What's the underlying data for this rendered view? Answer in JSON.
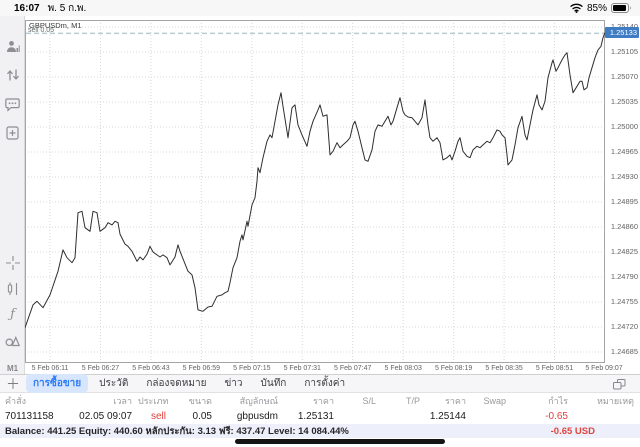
{
  "status_bar": {
    "time": "16:07",
    "date": "พ. 5 ก.พ.",
    "battery": "85%"
  },
  "sidebar": {
    "timeframe": "M1"
  },
  "chart": {
    "symbol_label": "GBPUSDm, M1",
    "position_line": {
      "label": "sell 0.05",
      "price": 1.25131
    },
    "current_price": "1.25133"
  },
  "chart_data": {
    "type": "line",
    "title": "GBPUSDm, M1",
    "ylim": [
      1.24685,
      1.2514
    ],
    "y_top": 1.2514,
    "y_step": 0.00035,
    "grid": true,
    "y_ticks": [
      "1.25140",
      "1.25105",
      "1.25070",
      "1.25035",
      "1.25000",
      "1.24965",
      "1.24930",
      "1.24895",
      "1.24860",
      "1.24825",
      "1.24790",
      "1.24755",
      "1.24720",
      "1.24685"
    ],
    "x_ticks": [
      "5 Feb 06:11",
      "5 Feb 06:27",
      "5 Feb 06:43",
      "5 Feb 06:59",
      "5 Feb 07:15",
      "5 Feb 07:31",
      "5 Feb 07:47",
      "5 Feb 08:03",
      "5 Feb 08:19",
      "5 Feb 08:35",
      "5 Feb 08:51",
      "5 Feb 09:07"
    ],
    "points": [
      [
        0,
        1.24719
      ],
      [
        8,
        1.24751
      ],
      [
        12,
        1.24756
      ],
      [
        18,
        1.24747
      ],
      [
        25,
        1.24765
      ],
      [
        33,
        1.24798
      ],
      [
        38,
        1.24828
      ],
      [
        42,
        1.24817
      ],
      [
        47,
        1.2481
      ],
      [
        50,
        1.24817
      ],
      [
        53,
        1.2488
      ],
      [
        57,
        1.24882
      ],
      [
        60,
        1.24859
      ],
      [
        65,
        1.24854
      ],
      [
        68,
        1.24882
      ],
      [
        72,
        1.2488
      ],
      [
        75,
        1.24854
      ],
      [
        80,
        1.24859
      ],
      [
        83,
        1.24866
      ],
      [
        87,
        1.24863
      ],
      [
        90,
        1.24868
      ],
      [
        93,
        1.24866
      ],
      [
        95,
        1.2485
      ],
      [
        100,
        1.24836
      ],
      [
        103,
        1.24833
      ],
      [
        107,
        1.24826
      ],
      [
        112,
        1.24812
      ],
      [
        115,
        1.24818
      ],
      [
        118,
        1.24814
      ],
      [
        122,
        1.24822
      ],
      [
        125,
        1.24833
      ],
      [
        128,
        1.24825
      ],
      [
        132,
        1.24821
      ],
      [
        135,
        1.24818
      ],
      [
        138,
        1.24821
      ],
      [
        142,
        1.24817
      ],
      [
        145,
        1.24807
      ],
      [
        150,
        1.24818
      ],
      [
        153,
        1.24835
      ],
      [
        155,
        1.24826
      ],
      [
        159,
        1.24812
      ],
      [
        163,
        1.24798
      ],
      [
        167,
        1.24793
      ],
      [
        170,
        1.24775
      ],
      [
        173,
        1.24744
      ],
      [
        178,
        1.24742
      ],
      [
        183,
        1.24748
      ],
      [
        187,
        1.24749
      ],
      [
        192,
        1.24763
      ],
      [
        197,
        1.24765
      ],
      [
        200,
        1.24768
      ],
      [
        203,
        1.2477
      ],
      [
        205,
        1.24782
      ],
      [
        208,
        1.24803
      ],
      [
        212,
        1.24817
      ],
      [
        215,
        1.2484
      ],
      [
        217,
        1.24849
      ],
      [
        218,
        1.24842
      ],
      [
        222,
        1.24868
      ],
      [
        223,
        1.24861
      ],
      [
        227,
        1.24891
      ],
      [
        230,
        1.24901
      ],
      [
        232,
        1.24924
      ],
      [
        233,
        1.24943
      ],
      [
        235,
        1.24936
      ],
      [
        238,
        1.24957
      ],
      [
        242,
        1.2498
      ],
      [
        245,
        1.24989
      ],
      [
        247,
        1.24985
      ],
      [
        250,
        1.25008
      ],
      [
        253,
        1.25031
      ],
      [
        256,
        1.25048
      ],
      [
        258,
        1.25029
      ],
      [
        263,
        1.24985
      ],
      [
        267,
        1.25027
      ],
      [
        270,
        1.25031
      ],
      [
        273,
        1.25003
      ],
      [
        277,
        1.24989
      ],
      [
        282,
        1.24973
      ],
      [
        285,
        1.24994
      ],
      [
        288,
        1.25008
      ],
      [
        293,
        1.25024
      ],
      [
        295,
        1.25031
      ],
      [
        298,
        1.25015
      ],
      [
        302,
        1.25017
      ],
      [
        305,
        1.24961
      ],
      [
        308,
        1.24966
      ],
      [
        312,
        1.24978
      ],
      [
        315,
        1.24971
      ],
      [
        318,
        1.24975
      ],
      [
        322,
        1.2498
      ],
      [
        325,
        1.24985
      ],
      [
        328,
        1.25003
      ],
      [
        330,
        1.25008
      ],
      [
        333,
        1.24994
      ],
      [
        337,
        1.24971
      ],
      [
        340,
        1.24954
      ],
      [
        343,
        1.24952
      ],
      [
        347,
        1.24968
      ],
      [
        350,
        1.24994
      ],
      [
        353,
        1.25003
      ],
      [
        357,
        1.25001
      ],
      [
        360,
        1.25008
      ],
      [
        363,
        1.25015
      ],
      [
        366,
        1.25003
      ],
      [
        368,
        1.25008
      ],
      [
        372,
        1.25027
      ],
      [
        375,
        1.25041
      ],
      [
        378,
        1.25022
      ],
      [
        380,
        1.25017
      ],
      [
        383,
        1.25014
      ],
      [
        387,
        1.25013
      ],
      [
        390,
        1.25008
      ],
      [
        393,
        1.25003
      ],
      [
        397,
        1.25013
      ],
      [
        400,
        1.25038
      ],
      [
        403,
        1.25003
      ],
      [
        405,
        1.24985
      ],
      [
        408,
        1.2498
      ],
      [
        412,
        1.24985
      ],
      [
        415,
        1.24978
      ],
      [
        418,
        1.24954
      ],
      [
        422,
        1.24957
      ],
      [
        425,
        1.24961
      ],
      [
        427,
        1.24954
      ],
      [
        430,
        1.24966
      ],
      [
        433,
        1.2498
      ],
      [
        435,
        1.24985
      ],
      [
        438,
        1.24966
      ],
      [
        442,
        1.24959
      ],
      [
        445,
        1.24957
      ],
      [
        448,
        1.24968
      ],
      [
        452,
        1.24973
      ],
      [
        455,
        1.24971
      ],
      [
        458,
        1.24975
      ],
      [
        462,
        1.2498
      ],
      [
        465,
        1.24978
      ],
      [
        468,
        1.24985
      ],
      [
        472,
        1.24996
      ],
      [
        475,
        1.24994
      ],
      [
        477,
        1.24989
      ],
      [
        480,
        1.24985
      ],
      [
        482,
        1.24961
      ],
      [
        483,
        1.24947
      ],
      [
        487,
        1.24954
      ],
      [
        490,
        1.24975
      ],
      [
        493,
        1.24999
      ],
      [
        497,
        1.25015
      ],
      [
        500,
        1.24989
      ],
      [
        502,
        1.24982
      ],
      [
        505,
        1.25003
      ],
      [
        508,
        1.25024
      ],
      [
        512,
        1.25045
      ],
      [
        514,
        1.25031
      ],
      [
        517,
        1.25024
      ],
      [
        520,
        1.25036
      ],
      [
        523,
        1.25069
      ],
      [
        527,
        1.2509
      ],
      [
        528,
        1.25094
      ],
      [
        531,
        1.25078
      ],
      [
        533,
        1.25083
      ],
      [
        537,
        1.25094
      ],
      [
        540,
        1.25101
      ],
      [
        542,
        1.25104
      ],
      [
        545,
        1.25073
      ],
      [
        548,
        1.25048
      ],
      [
        552,
        1.25057
      ],
      [
        555,
        1.25064
      ],
      [
        557,
        1.25064
      ],
      [
        559,
        1.25052
      ],
      [
        562,
        1.25055
      ],
      [
        564,
        1.25069
      ],
      [
        567,
        1.25083
      ],
      [
        570,
        1.25097
      ],
      [
        573,
        1.25108
      ],
      [
        576,
        1.25113
      ],
      [
        578,
        1.25125
      ],
      [
        580,
        1.25132
      ]
    ]
  },
  "tabs": {
    "items": [
      {
        "label": "การซื้อขาย",
        "active": true
      },
      {
        "label": "ประวัติ",
        "active": false
      },
      {
        "label": "กล่องจดหมาย",
        "active": false
      },
      {
        "label": "ข่าว",
        "active": false
      },
      {
        "label": "บันทึก",
        "active": false
      },
      {
        "label": "การตั้งค่า",
        "active": false
      }
    ]
  },
  "orders_table": {
    "headers": [
      "คำสั่ง",
      "เวลา",
      "ประเภท",
      "ขนาด",
      "สัญลักษณ์",
      "ราคา",
      "S/L",
      "T/P",
      "ราคา",
      "Swap",
      "กำไร",
      "หมายเหตุ"
    ],
    "row": {
      "order": "701131158",
      "time": "02.05 09:07",
      "type": "sell",
      "size": "0.05",
      "symbol": "gbpusdm",
      "open_price": "1.25131",
      "sl": "",
      "tp": "",
      "price": "1.25144",
      "swap": "",
      "profit": "-0.65",
      "note": ""
    }
  },
  "account_bar": {
    "summary": "Balance: 441.25 Equity: 440.60 หลักประกัน: 3.13 ฟรี: 437.47 Level: 14 084.44%",
    "profit": "-0.65  USD"
  },
  "colors": {
    "accent": "#2e7cf5",
    "sell_red": "#e0433e",
    "price_tag_bg": "#3f7cc4",
    "grid": "#d8d8d8",
    "line": "#2e2e2e",
    "sell_line": "#b7ccd0",
    "border": "#a5a5a8"
  }
}
